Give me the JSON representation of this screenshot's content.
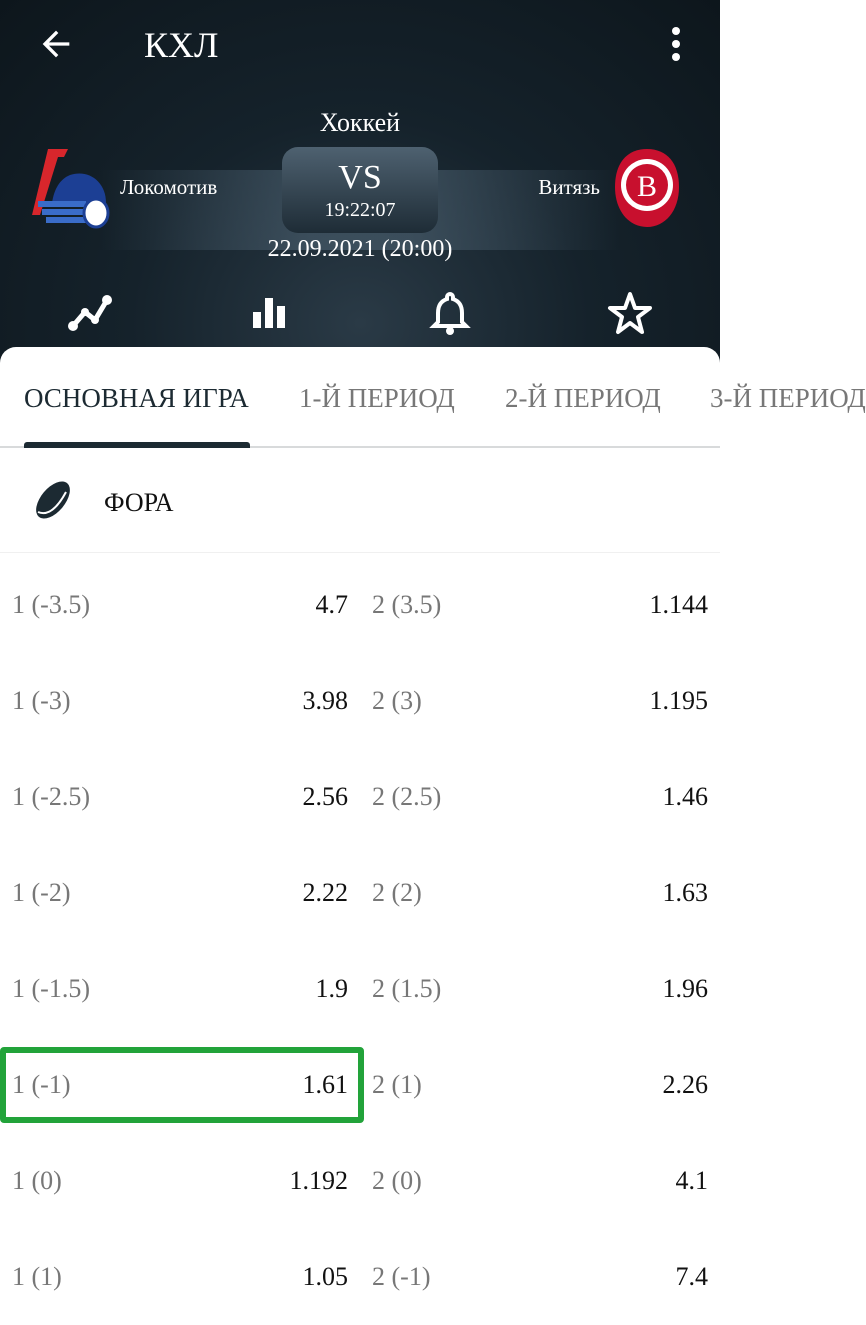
{
  "header": {
    "title": "КХЛ",
    "sport": "Хоккей",
    "vs": "VS",
    "timer": "19:22:07",
    "date": "22.09.2021 (20:00)",
    "team1": "Локомотив",
    "team2": "Витязь"
  },
  "icons": [
    "arrow-left-icon",
    "more-vertical-icon",
    "trend-line-icon",
    "bar-chart-icon",
    "bell-icon",
    "star-icon",
    "hockey-puck-icon"
  ],
  "tabs": [
    {
      "label": "ОСНОВНАЯ ИГРА",
      "active": true
    },
    {
      "label": "1-Й ПЕРИОД"
    },
    {
      "label": "2-Й ПЕРИОД"
    },
    {
      "label": "3-Й ПЕРИОД"
    }
  ],
  "section": {
    "title": "ФОРА"
  },
  "rows": [
    {
      "l1": "1 (-3.5)",
      "v1": "4.7",
      "l2": "2 (3.5)",
      "v2": "1.144"
    },
    {
      "l1": "1 (-3)",
      "v1": "3.98",
      "l2": "2 (3)",
      "v2": "1.195"
    },
    {
      "l1": "1 (-2.5)",
      "v1": "2.56",
      "l2": "2 (2.5)",
      "v2": "1.46"
    },
    {
      "l1": "1 (-2)",
      "v1": "2.22",
      "l2": "2 (2)",
      "v2": "1.63"
    },
    {
      "l1": "1 (-1.5)",
      "v1": "1.9",
      "l2": "2 (1.5)",
      "v2": "1.96"
    },
    {
      "l1": "1 (-1)",
      "v1": "1.61",
      "l2": "2 (1)",
      "v2": "2.26"
    },
    {
      "l1": "1 (0)",
      "v1": "1.192",
      "l2": "2 (0)",
      "v2": "4.1"
    },
    {
      "l1": "1 (1)",
      "v1": "1.05",
      "l2": "2 (-1)",
      "v2": "7.4"
    }
  ],
  "highlight_color": "#22a33a"
}
